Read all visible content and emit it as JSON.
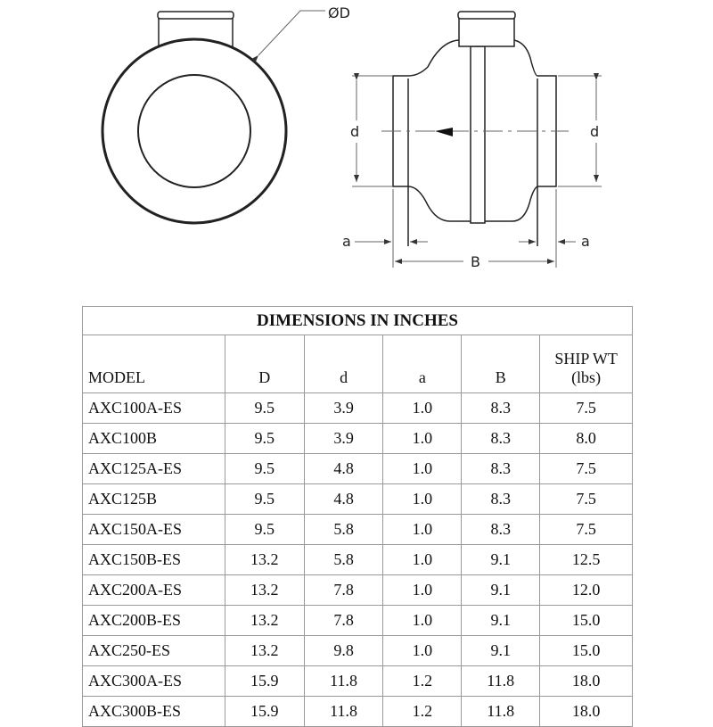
{
  "drawing": {
    "labels": {
      "outer_diameter": "ØD",
      "duct_diameter": "d",
      "collar_length": "a",
      "overall_length": "B"
    }
  },
  "table": {
    "title": "DIMENSIONS IN INCHES",
    "headers": [
      "MODEL",
      "D",
      "d",
      "a",
      "B",
      "SHIP WT",
      "(lbs)"
    ],
    "rows": [
      [
        "AXC100A-ES",
        "9.5",
        "3.9",
        "1.0",
        "8.3",
        "7.5"
      ],
      [
        "AXC100B",
        "9.5",
        "3.9",
        "1.0",
        "8.3",
        "8.0"
      ],
      [
        "AXC125A-ES",
        "9.5",
        "4.8",
        "1.0",
        "8.3",
        "7.5"
      ],
      [
        "AXC125B",
        "9.5",
        "4.8",
        "1.0",
        "8.3",
        "7.5"
      ],
      [
        "AXC150A-ES",
        "9.5",
        "5.8",
        "1.0",
        "8.3",
        "7.5"
      ],
      [
        "AXC150B-ES",
        "13.2",
        "5.8",
        "1.0",
        "9.1",
        "12.5"
      ],
      [
        "AXC200A-ES",
        "13.2",
        "7.8",
        "1.0",
        "9.1",
        "12.0"
      ],
      [
        "AXC200B-ES",
        "13.2",
        "7.8",
        "1.0",
        "9.1",
        "15.0"
      ],
      [
        "AXC250-ES",
        "13.2",
        "9.8",
        "1.0",
        "9.1",
        "15.0"
      ],
      [
        "AXC300A-ES",
        "15.9",
        "11.8",
        "1.2",
        "11.8",
        "18.0"
      ],
      [
        "AXC300B-ES",
        "15.9",
        "11.8",
        "1.2",
        "11.8",
        "18.0"
      ]
    ]
  }
}
